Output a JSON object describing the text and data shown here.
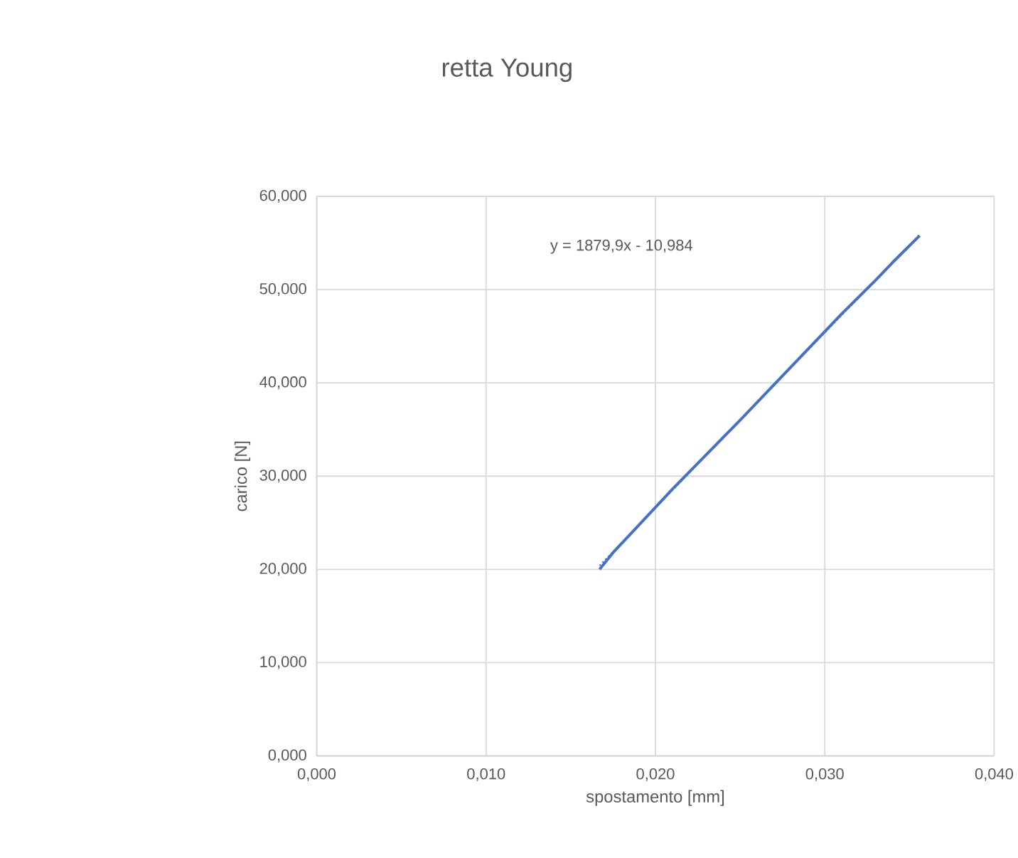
{
  "chart_data": {
    "type": "line",
    "title": "retta Young",
    "xlabel": "spostamento [mm]",
    "ylabel": "carico [N]",
    "xlim": [
      0,
      0.04
    ],
    "ylim": [
      0,
      60
    ],
    "xticks": [
      {
        "value": 0,
        "label": "0,000"
      },
      {
        "value": 0.01,
        "label": "0,010"
      },
      {
        "value": 0.02,
        "label": "0,020"
      },
      {
        "value": 0.03,
        "label": "0,030"
      },
      {
        "value": 0.04,
        "label": "0,040"
      }
    ],
    "yticks": [
      {
        "value": 0,
        "label": "0,000"
      },
      {
        "value": 10,
        "label": "10,000"
      },
      {
        "value": 20,
        "label": "20,000"
      },
      {
        "value": 30,
        "label": "30,000"
      },
      {
        "value": 40,
        "label": "40,000"
      },
      {
        "value": 50,
        "label": "50,000"
      },
      {
        "value": 60,
        "label": "60,000"
      }
    ],
    "grid": true,
    "series": [
      {
        "color": "#4472c4",
        "line_style": "solid",
        "x": [
          0.0167,
          0.0175,
          0.019,
          0.021,
          0.023,
          0.025,
          0.027,
          0.029,
          0.031,
          0.033,
          0.034,
          0.0355,
          0.0356
        ],
        "values": [
          20.0,
          21.8,
          24.7,
          28.6,
          32.3,
          36.0,
          39.8,
          43.6,
          47.4,
          51.0,
          52.9,
          55.6,
          55.8
        ]
      },
      {
        "type": "line",
        "color": "#4472c4",
        "line_style": "dotted",
        "x": [
          0.0167,
          0.0356
        ],
        "values": [
          20.4,
          55.9
        ]
      }
    ],
    "annotations": [
      "y = 1879,9x - 10,984"
    ]
  }
}
